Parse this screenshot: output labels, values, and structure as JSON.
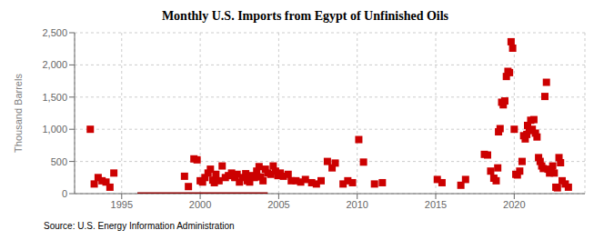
{
  "chart_data": {
    "type": "scatter",
    "title": "Monthly U.S. Imports from Egypt of Unfinished Oils",
    "y_label": "Thousand Barrels",
    "annotations": [
      "Source: U.S. Energy Information Administration"
    ],
    "xlim": [
      1992.0,
      2024.5
    ],
    "xticks": [
      1995,
      2000,
      2005,
      2010,
      2015,
      2020
    ],
    "ylim": [
      0,
      2500
    ],
    "yticks": [
      0,
      500,
      {
        "value": 1000,
        "label": "1,000"
      },
      {
        "value": 1500,
        "label": "1,500"
      },
      {
        "value": 2000,
        "label": "2,000"
      },
      {
        "value": 2500,
        "label": "2,500"
      }
    ],
    "grid": true,
    "series": [
      {
        "type": "scatter",
        "color": "#cc0000",
        "marker": "square",
        "x": [
          1993.0,
          1993.25,
          1993.5,
          1993.75,
          1994.0,
          1994.25,
          1994.5,
          1999.0,
          1999.25,
          1999.6,
          1999.8,
          2000.0,
          2000.15,
          2000.3,
          2000.5,
          2000.65,
          2000.8,
          2000.9,
          2001.0,
          2001.2,
          2001.4,
          2001.6,
          2001.8,
          2002.0,
          2002.2,
          2002.35,
          2002.5,
          2002.7,
          2002.9,
          2003.0,
          2003.15,
          2003.3,
          2003.45,
          2003.6,
          2003.75,
          2003.85,
          2004.0,
          2004.15,
          2004.3,
          2004.5,
          2004.65,
          2004.8,
          2004.95,
          2005.1,
          2005.3,
          2005.6,
          2005.8,
          2006.1,
          2006.4,
          2006.7,
          2007.1,
          2007.4,
          2007.7,
          2008.1,
          2008.4,
          2008.6,
          2009.1,
          2009.4,
          2009.7,
          2010.1,
          2010.4,
          2011.1,
          2011.6,
          2015.1,
          2015.4,
          2016.6,
          2016.9,
          2018.1,
          2018.3,
          2018.5,
          2018.7,
          2018.85,
          2018.95,
          2019.0,
          2019.1,
          2019.2,
          2019.3,
          2019.4,
          2019.5,
          2019.6,
          2019.7,
          2019.8,
          2019.9,
          2020.0,
          2020.1,
          2020.2,
          2020.35,
          2020.5,
          2020.6,
          2020.7,
          2020.8,
          2020.85,
          2020.95,
          2021.05,
          2021.15,
          2021.25,
          2021.35,
          2021.45,
          2021.55,
          2021.65,
          2021.75,
          2021.85,
          2021.95,
          2022.05,
          2022.15,
          2022.25,
          2022.35,
          2022.45,
          2022.55,
          2022.65,
          2022.75,
          2022.85,
          2022.95,
          2023.05,
          2023.25,
          2023.45
        ],
        "values": [
          1000,
          150,
          250,
          200,
          180,
          100,
          320,
          270,
          110,
          540,
          525,
          200,
          180,
          250,
          320,
          380,
          210,
          170,
          300,
          200,
          430,
          250,
          280,
          320,
          250,
          300,
          180,
          250,
          310,
          200,
          180,
          280,
          250,
          350,
          420,
          260,
          200,
          380,
          320,
          300,
          430,
          350,
          280,
          320,
          270,
          300,
          200,
          200,
          180,
          220,
          170,
          150,
          200,
          500,
          400,
          475,
          150,
          200,
          170,
          840,
          490,
          150,
          170,
          220,
          170,
          130,
          220,
          610,
          600,
          350,
          240,
          200,
          400,
          960,
          1010,
          1420,
          1380,
          1440,
          1820,
          1900,
          1880,
          2360,
          2260,
          1000,
          300,
          290,
          350,
          500,
          900,
          850,
          920,
          1060,
          980,
          1140,
          1000,
          1150,
          940,
          880,
          560,
          500,
          430,
          390,
          1510,
          1730,
          380,
          320,
          350,
          430,
          320,
          100,
          90,
          560,
          480,
          200,
          150,
          100
        ]
      },
      {
        "type": "line",
        "color": "#8b0000",
        "x": [
          1996.0,
          2004.3
        ],
        "values": [
          0,
          0
        ]
      }
    ]
  }
}
